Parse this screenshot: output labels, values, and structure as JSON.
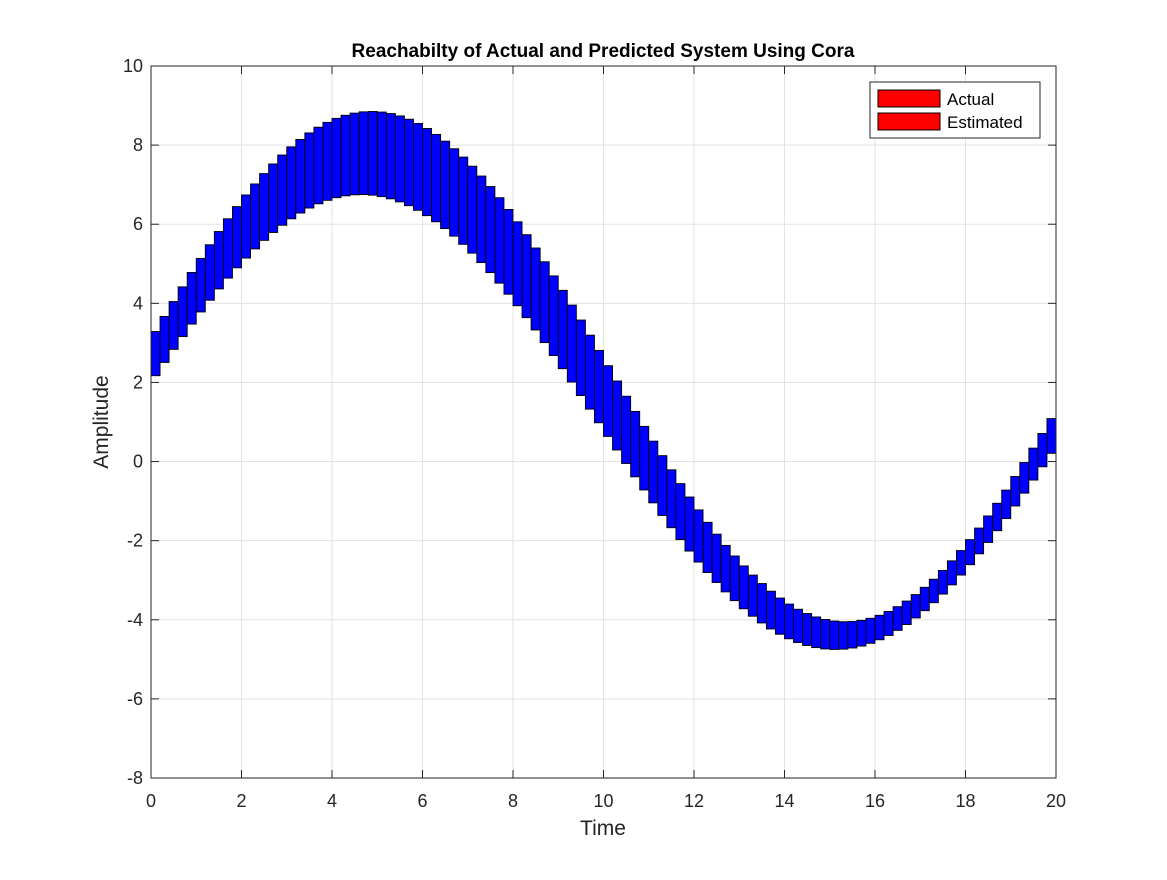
{
  "chart_data": {
    "type": "bar",
    "title": "Reachabilty of Actual and Predicted System Using Cora",
    "xlabel": "Time",
    "ylabel": "Amplitude",
    "xlim": [
      0,
      20
    ],
    "ylim": [
      -8,
      10
    ],
    "xticks": [
      "0",
      "2",
      "4",
      "6",
      "8",
      "10",
      "12",
      "14",
      "16",
      "18",
      "20"
    ],
    "yticks": [
      "-8",
      "-6",
      "-4",
      "-2",
      "0",
      "2",
      "4",
      "6",
      "8",
      "10"
    ],
    "grid": true,
    "legend_position": "top-right",
    "legend": [
      {
        "name": "Actual",
        "color": "#ff0000"
      },
      {
        "name": "Estimated",
        "color": "#ff0000"
      }
    ],
    "box_fill_color": "#0000ff",
    "box_edge_color": "#000000",
    "reachable_boxes": {
      "time_start": 0,
      "time_step": 0.2,
      "count": 100,
      "lower_model": {
        "offset": 1.0,
        "amplitude": 5.75,
        "frequency": 0.3,
        "phase": 0.175
      },
      "upper_model": {
        "offset": 2.4,
        "amplitude": 6.45,
        "frequency": 0.3,
        "phase": 0.108
      }
    }
  }
}
